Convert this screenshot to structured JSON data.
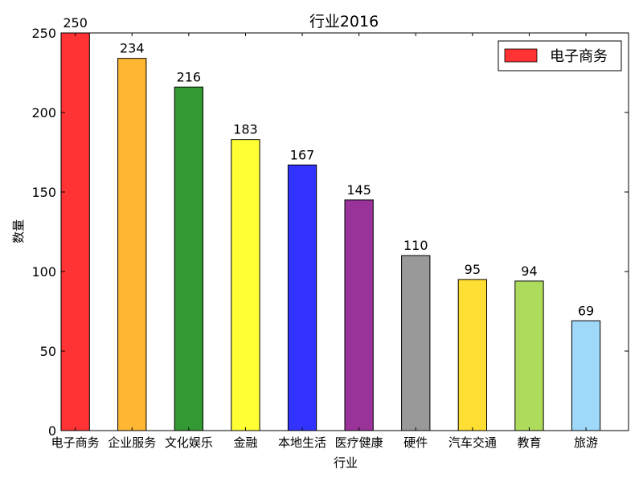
{
  "chart_data": {
    "type": "bar",
    "title": "行业2016",
    "xlabel": "行业",
    "ylabel": "数量",
    "ylim": [
      0,
      250
    ],
    "yticks": [
      0,
      50,
      100,
      150,
      200,
      250
    ],
    "grid": false,
    "legend": {
      "position": "top-right",
      "entries": [
        {
          "label": "电子商务",
          "color": "#ff3333"
        }
      ]
    },
    "categories": [
      "电子商务",
      "企业服务",
      "文化娱乐",
      "金融",
      "本地生活",
      "医疗健康",
      "硬件",
      "汽车交通",
      "教育",
      "旅游"
    ],
    "values": [
      250,
      234,
      216,
      183,
      167,
      145,
      110,
      95,
      94,
      69
    ],
    "colors": [
      "#ff3333",
      "#ffb733",
      "#339933",
      "#ffff33",
      "#3333ff",
      "#993399",
      "#999999",
      "#ffdf33",
      "#addb5b",
      "#9fd8f8"
    ]
  }
}
